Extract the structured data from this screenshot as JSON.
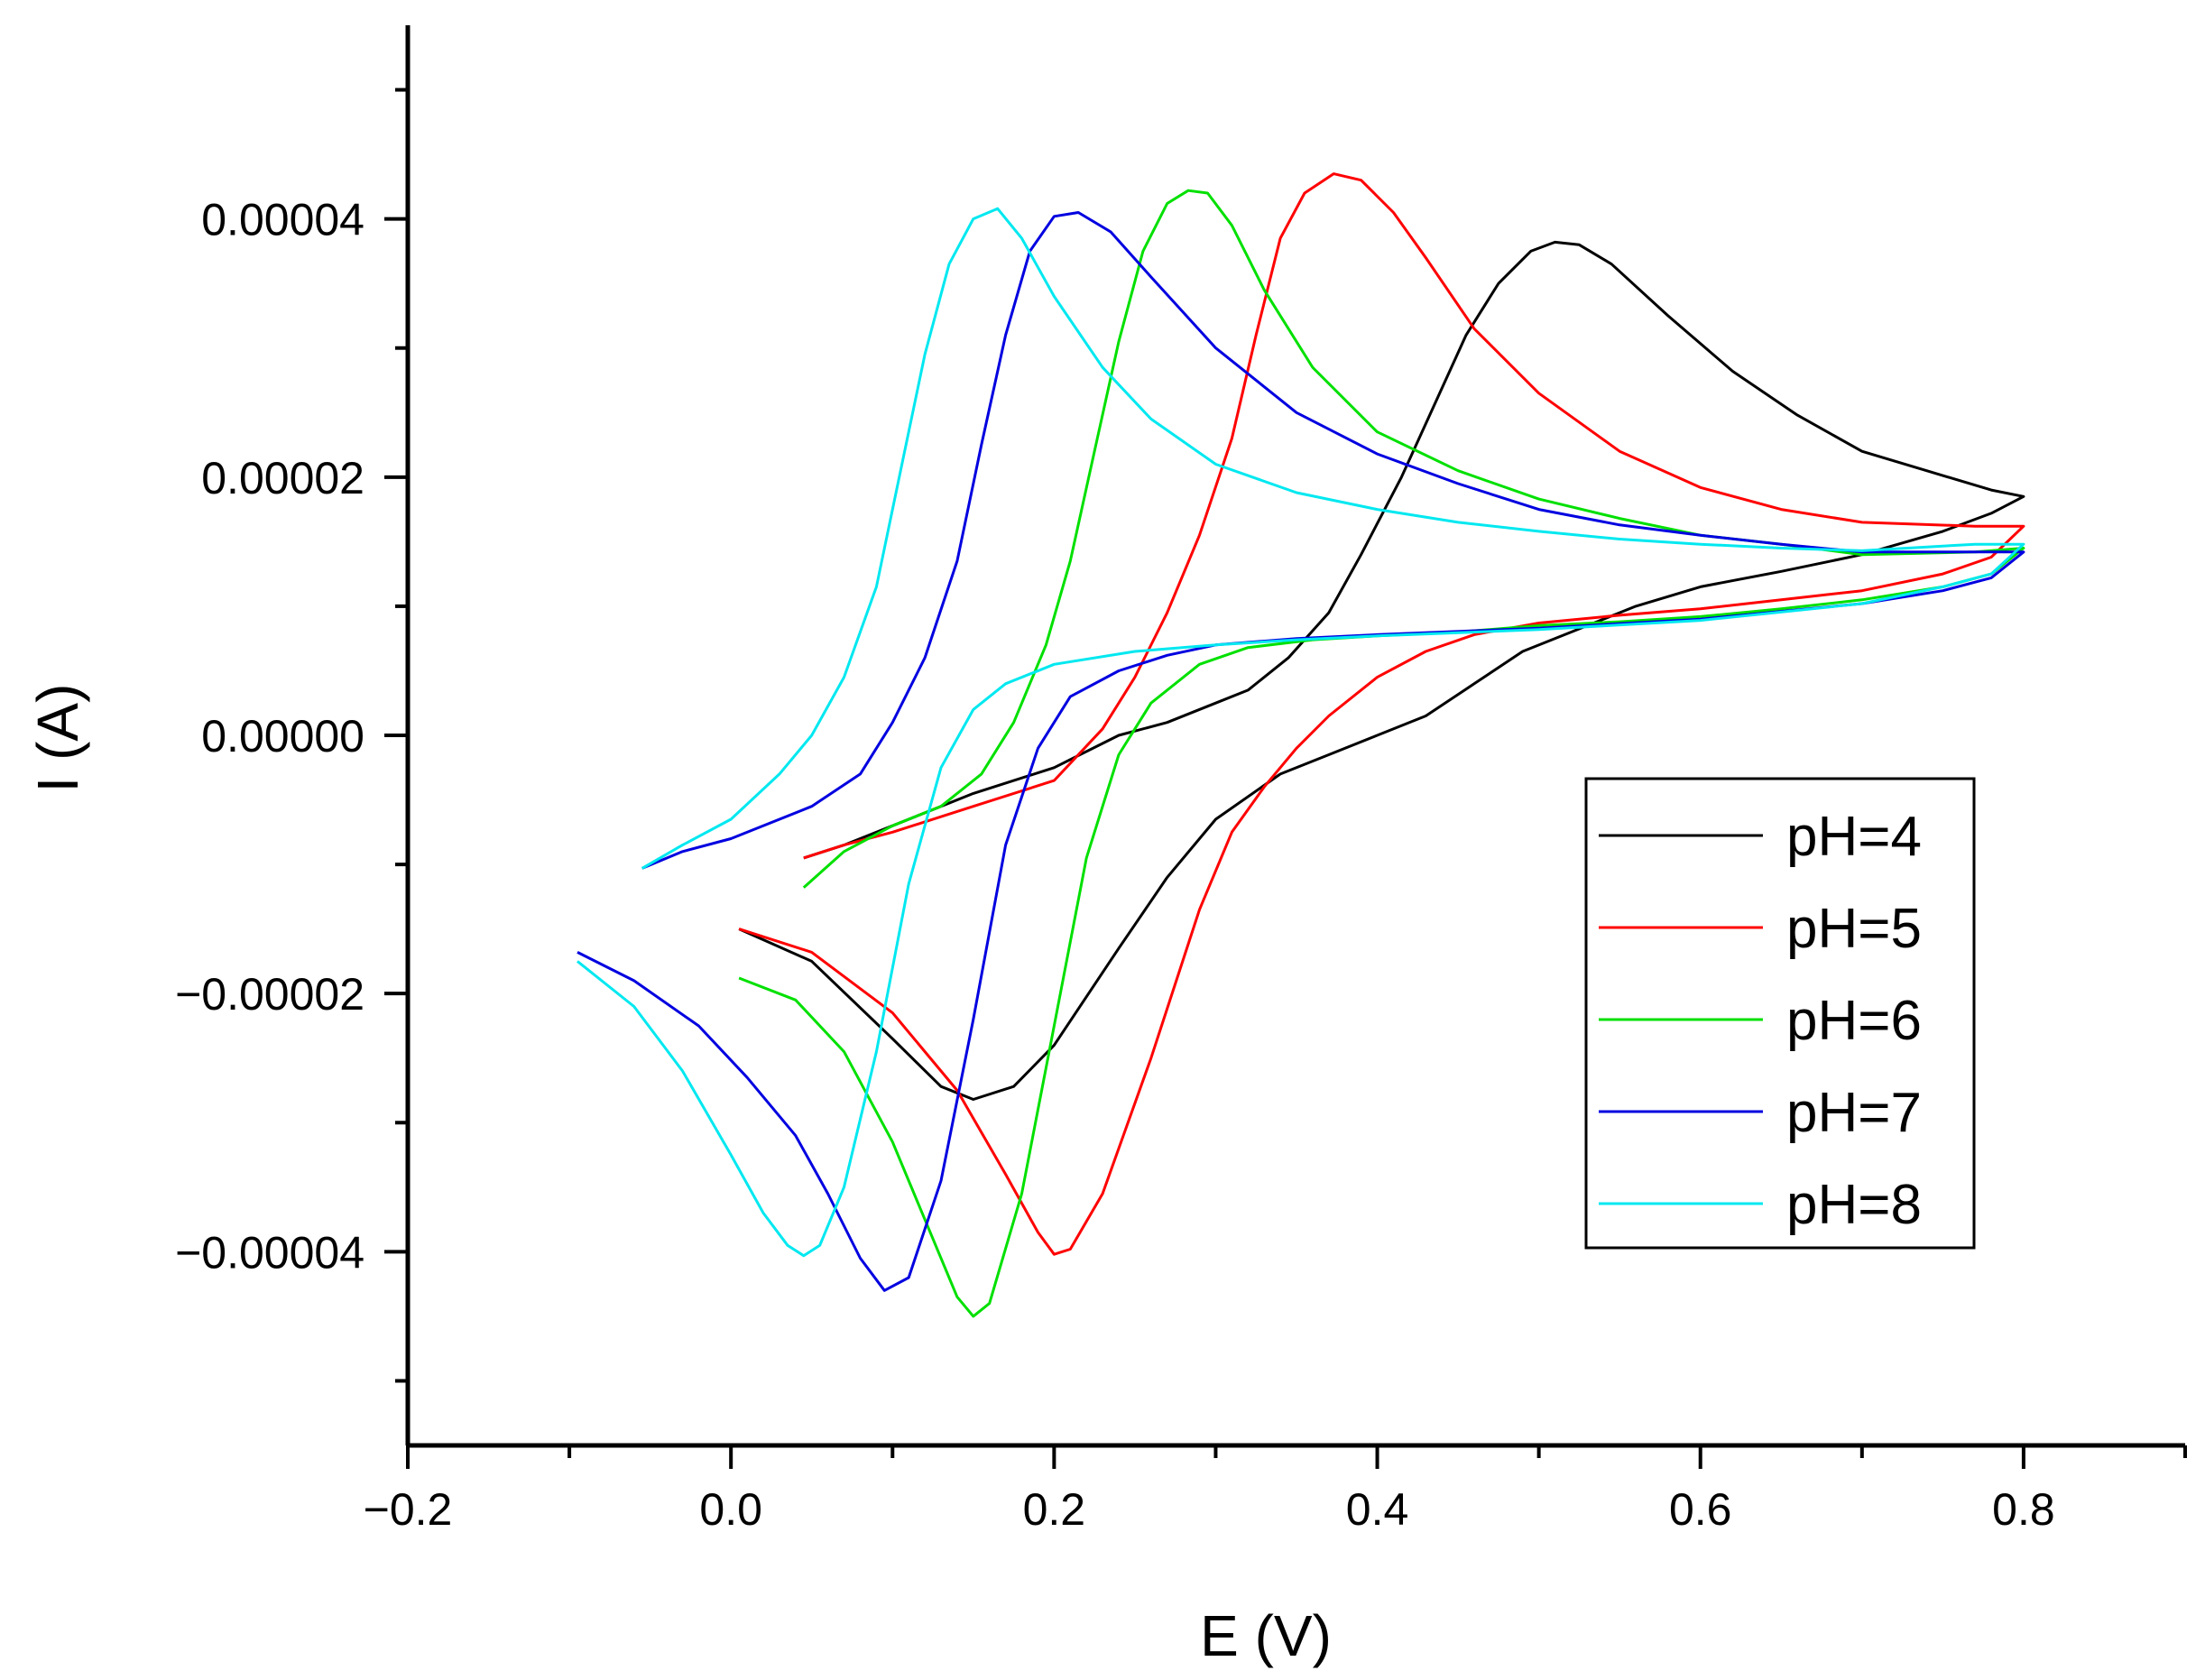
{
  "chart_data": {
    "type": "line",
    "title": "",
    "xlabel": "E (V)",
    "ylabel": "I (A)",
    "xlim": [
      -0.2,
      0.9
    ],
    "ylim": [
      -5.5e-05,
      5.5e-05
    ],
    "x_ticks": [
      -0.2,
      0.0,
      0.2,
      0.4,
      0.6,
      0.8
    ],
    "x_tick_labels": [
      "−0.2",
      "0.0",
      "0.2",
      "0.4",
      "0.6",
      "0.8"
    ],
    "y_ticks": [
      -4e-05,
      -2e-05,
      0.0,
      2e-05,
      4e-05
    ],
    "y_tick_labels": [
      "−0.00004",
      "−0.00002",
      "0.00000",
      "0.00002",
      "0.00004"
    ],
    "grid": false,
    "legend_position": "lower-right",
    "series": [
      {
        "name": "pH=4",
        "color": "#000000",
        "points": [
          [
            0.005,
            -1.5e-05
          ],
          [
            0.05,
            -1.75e-05
          ],
          [
            0.1,
            -2.35e-05
          ],
          [
            0.13,
            -2.72e-05
          ],
          [
            0.15,
            -2.82e-05
          ],
          [
            0.175,
            -2.72e-05
          ],
          [
            0.2,
            -2.4e-05
          ],
          [
            0.24,
            -1.65e-05
          ],
          [
            0.27,
            -1.1e-05
          ],
          [
            0.3,
            -6.5e-06
          ],
          [
            0.34,
            -3e-06
          ],
          [
            0.37,
            -1.5e-06
          ],
          [
            0.4,
            0.0
          ],
          [
            0.43,
            1.5e-06
          ],
          [
            0.46,
            4e-06
          ],
          [
            0.49,
            6.5e-06
          ],
          [
            0.53,
            8.5e-06
          ],
          [
            0.56,
            1e-05
          ],
          [
            0.6,
            1.15e-05
          ],
          [
            0.65,
            1.27e-05
          ],
          [
            0.7,
            1.4e-05
          ],
          [
            0.75,
            1.58e-05
          ],
          [
            0.78,
            1.72e-05
          ],
          [
            0.8,
            1.85e-05
          ],
          [
            0.78,
            1.9e-05
          ],
          [
            0.74,
            2.05e-05
          ],
          [
            0.7,
            2.2e-05
          ],
          [
            0.66,
            2.48e-05
          ],
          [
            0.62,
            2.82e-05
          ],
          [
            0.58,
            3.25e-05
          ],
          [
            0.545,
            3.65e-05
          ],
          [
            0.525,
            3.8e-05
          ],
          [
            0.51,
            3.82e-05
          ],
          [
            0.495,
            3.75e-05
          ],
          [
            0.475,
            3.5e-05
          ],
          [
            0.455,
            3.1e-05
          ],
          [
            0.435,
            2.55e-05
          ],
          [
            0.415,
            2e-05
          ],
          [
            0.39,
            1.4e-05
          ],
          [
            0.37,
            9.5e-06
          ],
          [
            0.345,
            6e-06
          ],
          [
            0.32,
            3.5e-06
          ],
          [
            0.3,
            2.5e-06
          ],
          [
            0.27,
            1e-06
          ],
          [
            0.24,
            0.0
          ],
          [
            0.2,
            -2.5e-06
          ],
          [
            0.15,
            -4.5e-06
          ],
          [
            0.1,
            -7e-06
          ],
          [
            0.07,
            -8.5e-06
          ],
          [
            0.045,
            -9.5e-06
          ]
        ]
      },
      {
        "name": "pH=5",
        "color": "#ff0000",
        "points": [
          [
            0.005,
            -1.5e-05
          ],
          [
            0.05,
            -1.68e-05
          ],
          [
            0.1,
            -2.15e-05
          ],
          [
            0.14,
            -2.75e-05
          ],
          [
            0.17,
            -3.4e-05
          ],
          [
            0.19,
            -3.85e-05
          ],
          [
            0.2,
            -4.02e-05
          ],
          [
            0.21,
            -3.98e-05
          ],
          [
            0.23,
            -3.55e-05
          ],
          [
            0.26,
            -2.5e-05
          ],
          [
            0.29,
            -1.35e-05
          ],
          [
            0.31,
            -7.5e-06
          ],
          [
            0.33,
            -4e-06
          ],
          [
            0.35,
            -1e-06
          ],
          [
            0.37,
            1.5e-06
          ],
          [
            0.4,
            4.5e-06
          ],
          [
            0.43,
            6.5e-06
          ],
          [
            0.46,
            7.8e-06
          ],
          [
            0.5,
            8.7e-06
          ],
          [
            0.55,
            9.3e-06
          ],
          [
            0.6,
            9.8e-06
          ],
          [
            0.65,
            1.05e-05
          ],
          [
            0.7,
            1.12e-05
          ],
          [
            0.75,
            1.25e-05
          ],
          [
            0.78,
            1.38e-05
          ],
          [
            0.8,
            1.62e-05
          ],
          [
            0.77,
            1.62e-05
          ],
          [
            0.7,
            1.65e-05
          ],
          [
            0.65,
            1.75e-05
          ],
          [
            0.6,
            1.92e-05
          ],
          [
            0.55,
            2.2e-05
          ],
          [
            0.5,
            2.65e-05
          ],
          [
            0.46,
            3.15e-05
          ],
          [
            0.43,
            3.7e-05
          ],
          [
            0.41,
            4.05e-05
          ],
          [
            0.39,
            4.3e-05
          ],
          [
            0.373,
            4.35e-05
          ],
          [
            0.355,
            4.2e-05
          ],
          [
            0.34,
            3.85e-05
          ],
          [
            0.325,
            3.1e-05
          ],
          [
            0.31,
            2.3e-05
          ],
          [
            0.29,
            1.55e-05
          ],
          [
            0.27,
            9.5e-06
          ],
          [
            0.25,
            4.5e-06
          ],
          [
            0.23,
            5e-07
          ],
          [
            0.2,
            -3.5e-06
          ],
          [
            0.15,
            -5.5e-06
          ],
          [
            0.1,
            -7.5e-06
          ],
          [
            0.07,
            -8.5e-06
          ],
          [
            0.045,
            -9.5e-06
          ]
        ]
      },
      {
        "name": "pH=6",
        "color": "#00e000",
        "points": [
          [
            0.005,
            -1.88e-05
          ],
          [
            0.04,
            -2.05e-05
          ],
          [
            0.07,
            -2.45e-05
          ],
          [
            0.1,
            -3.15e-05
          ],
          [
            0.12,
            -3.75e-05
          ],
          [
            0.14,
            -4.35e-05
          ],
          [
            0.15,
            -4.5e-05
          ],
          [
            0.16,
            -4.4e-05
          ],
          [
            0.18,
            -3.55e-05
          ],
          [
            0.2,
            -2.25e-05
          ],
          [
            0.22,
            -9.5e-06
          ],
          [
            0.24,
            -1.5e-06
          ],
          [
            0.26,
            2.5e-06
          ],
          [
            0.29,
            5.5e-06
          ],
          [
            0.32,
            6.8e-06
          ],
          [
            0.36,
            7.4e-06
          ],
          [
            0.4,
            7.7e-06
          ],
          [
            0.45,
            8e-06
          ],
          [
            0.5,
            8.5e-06
          ],
          [
            0.55,
            8.8e-06
          ],
          [
            0.6,
            9.2e-06
          ],
          [
            0.65,
            9.8e-06
          ],
          [
            0.7,
            1.05e-05
          ],
          [
            0.75,
            1.15e-05
          ],
          [
            0.78,
            1.25e-05
          ],
          [
            0.8,
            1.45e-05
          ],
          [
            0.77,
            1.42e-05
          ],
          [
            0.7,
            1.4e-05
          ],
          [
            0.65,
            1.48e-05
          ],
          [
            0.6,
            1.55e-05
          ],
          [
            0.55,
            1.68e-05
          ],
          [
            0.5,
            1.83e-05
          ],
          [
            0.45,
            2.05e-05
          ],
          [
            0.4,
            2.35e-05
          ],
          [
            0.36,
            2.85e-05
          ],
          [
            0.33,
            3.45e-05
          ],
          [
            0.31,
            3.95e-05
          ],
          [
            0.295,
            4.2e-05
          ],
          [
            0.283,
            4.22e-05
          ],
          [
            0.27,
            4.12e-05
          ],
          [
            0.255,
            3.75e-05
          ],
          [
            0.24,
            3.05e-05
          ],
          [
            0.225,
            2.2e-05
          ],
          [
            0.21,
            1.35e-05
          ],
          [
            0.195,
            7e-06
          ],
          [
            0.175,
            1e-06
          ],
          [
            0.155,
            -3e-06
          ],
          [
            0.13,
            -5.5e-06
          ],
          [
            0.1,
            -7e-06
          ],
          [
            0.07,
            -9e-06
          ],
          [
            0.045,
            -1.18e-05
          ]
        ]
      },
      {
        "name": "pH=7",
        "color": "#0000e0",
        "points": [
          [
            -0.095,
            -1.68e-05
          ],
          [
            -0.06,
            -1.9e-05
          ],
          [
            -0.02,
            -2.25e-05
          ],
          [
            0.01,
            -2.65e-05
          ],
          [
            0.04,
            -3.1e-05
          ],
          [
            0.06,
            -3.55e-05
          ],
          [
            0.08,
            -4.05e-05
          ],
          [
            0.095,
            -4.3e-05
          ],
          [
            0.11,
            -4.2e-05
          ],
          [
            0.13,
            -3.45e-05
          ],
          [
            0.15,
            -2.2e-05
          ],
          [
            0.17,
            -8.5e-06
          ],
          [
            0.19,
            -1e-06
          ],
          [
            0.21,
            3e-06
          ],
          [
            0.24,
            5e-06
          ],
          [
            0.27,
            6.2e-06
          ],
          [
            0.3,
            7e-06
          ],
          [
            0.35,
            7.5e-06
          ],
          [
            0.4,
            7.8e-06
          ],
          [
            0.5,
            8.3e-06
          ],
          [
            0.6,
            9e-06
          ],
          [
            0.7,
            1.02e-05
          ],
          [
            0.75,
            1.12e-05
          ],
          [
            0.78,
            1.22e-05
          ],
          [
            0.8,
            1.42e-05
          ],
          [
            0.77,
            1.42e-05
          ],
          [
            0.7,
            1.42e-05
          ],
          [
            0.65,
            1.48e-05
          ],
          [
            0.6,
            1.55e-05
          ],
          [
            0.55,
            1.63e-05
          ],
          [
            0.5,
            1.75e-05
          ],
          [
            0.45,
            1.95e-05
          ],
          [
            0.4,
            2.18e-05
          ],
          [
            0.35,
            2.5e-05
          ],
          [
            0.3,
            3e-05
          ],
          [
            0.26,
            3.55e-05
          ],
          [
            0.235,
            3.9e-05
          ],
          [
            0.215,
            4.05e-05
          ],
          [
            0.2,
            4.02e-05
          ],
          [
            0.185,
            3.75e-05
          ],
          [
            0.17,
            3.1e-05
          ],
          [
            0.155,
            2.25e-05
          ],
          [
            0.14,
            1.35e-05
          ],
          [
            0.12,
            6e-06
          ],
          [
            0.1,
            1e-06
          ],
          [
            0.08,
            -3e-06
          ],
          [
            0.05,
            -5.5e-06
          ],
          [
            0.0,
            -8e-06
          ],
          [
            -0.03,
            -9e-06
          ],
          [
            -0.055,
            -1.03e-05
          ]
        ]
      },
      {
        "name": "pH=8",
        "color": "#00e8f0",
        "points": [
          [
            -0.095,
            -1.75e-05
          ],
          [
            -0.06,
            -2.1e-05
          ],
          [
            -0.03,
            -2.6e-05
          ],
          [
            0.0,
            -3.25e-05
          ],
          [
            0.02,
            -3.7e-05
          ],
          [
            0.035,
            -3.95e-05
          ],
          [
            0.045,
            -4.03e-05
          ],
          [
            0.055,
            -3.95e-05
          ],
          [
            0.07,
            -3.5e-05
          ],
          [
            0.09,
            -2.45e-05
          ],
          [
            0.11,
            -1.15e-05
          ],
          [
            0.13,
            -2.5e-06
          ],
          [
            0.15,
            2e-06
          ],
          [
            0.17,
            4e-06
          ],
          [
            0.2,
            5.5e-06
          ],
          [
            0.25,
            6.5e-06
          ],
          [
            0.3,
            7e-06
          ],
          [
            0.35,
            7.4e-06
          ],
          [
            0.4,
            7.7e-06
          ],
          [
            0.5,
            8.2e-06
          ],
          [
            0.6,
            8.9e-06
          ],
          [
            0.7,
            1.02e-05
          ],
          [
            0.75,
            1.15e-05
          ],
          [
            0.78,
            1.25e-05
          ],
          [
            0.8,
            1.48e-05
          ],
          [
            0.77,
            1.48e-05
          ],
          [
            0.7,
            1.43e-05
          ],
          [
            0.65,
            1.45e-05
          ],
          [
            0.6,
            1.48e-05
          ],
          [
            0.55,
            1.52e-05
          ],
          [
            0.5,
            1.58e-05
          ],
          [
            0.45,
            1.65e-05
          ],
          [
            0.4,
            1.75e-05
          ],
          [
            0.35,
            1.88e-05
          ],
          [
            0.3,
            2.1e-05
          ],
          [
            0.26,
            2.45e-05
          ],
          [
            0.23,
            2.85e-05
          ],
          [
            0.2,
            3.4e-05
          ],
          [
            0.18,
            3.85e-05
          ],
          [
            0.165,
            4.08e-05
          ],
          [
            0.15,
            4e-05
          ],
          [
            0.135,
            3.65e-05
          ],
          [
            0.12,
            2.95e-05
          ],
          [
            0.105,
            2.05e-05
          ],
          [
            0.09,
            1.15e-05
          ],
          [
            0.07,
            4.5e-06
          ],
          [
            0.05,
            0.0
          ],
          [
            0.03,
            -3e-06
          ],
          [
            0.0,
            -6.5e-06
          ],
          [
            -0.03,
            -8.5e-06
          ],
          [
            -0.055,
            -1.03e-05
          ]
        ]
      }
    ]
  }
}
